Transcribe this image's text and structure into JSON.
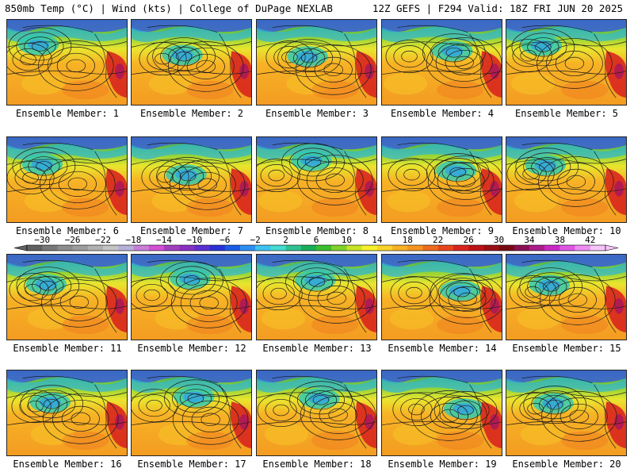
{
  "header": {
    "left": "850mb Temp (°C) | Wind (kts) | College of DuPage NEXLAB",
    "right": "12Z GEFS | F294 Valid: 18Z FRI JUN 20 2025"
  },
  "members": [
    {
      "label": "Ensemble Member: 1"
    },
    {
      "label": "Ensemble Member: 2"
    },
    {
      "label": "Ensemble Member: 3"
    },
    {
      "label": "Ensemble Member: 4"
    },
    {
      "label": "Ensemble Member: 5"
    },
    {
      "label": "Ensemble Member: 6"
    },
    {
      "label": "Ensemble Member: 7"
    },
    {
      "label": "Ensemble Member: 8"
    },
    {
      "label": "Ensemble Member: 9"
    },
    {
      "label": "Ensemble Member: 10"
    },
    {
      "label": "Ensemble Member: 11"
    },
    {
      "label": "Ensemble Member: 12"
    },
    {
      "label": "Ensemble Member: 13"
    },
    {
      "label": "Ensemble Member: 14"
    },
    {
      "label": "Ensemble Member: 15"
    },
    {
      "label": "Ensemble Member: 16"
    },
    {
      "label": "Ensemble Member: 17"
    },
    {
      "label": "Ensemble Member: 18"
    },
    {
      "label": "Ensemble Member: 19"
    },
    {
      "label": "Ensemble Member: 20"
    }
  ],
  "colorbar": {
    "tick_labels": [
      "-30",
      "-26",
      "-22",
      "-18",
      "-14",
      "-10",
      "-6",
      "-2",
      "2",
      "6",
      "10",
      "14",
      "18",
      "22",
      "26",
      "30",
      "34",
      "38",
      "42"
    ],
    "colors": [
      "#606060",
      "#787878",
      "#8c8c8c",
      "#9c9c9c",
      "#b0b0b0",
      "#c4c4c4",
      "#b7b1d9",
      "#c87fd8",
      "#d450d4",
      "#a23fbf",
      "#8a2fc2",
      "#5c2fd0",
      "#2a32d6",
      "#1a5ce4",
      "#2d8ff0",
      "#3ec2f0",
      "#45dbd0",
      "#2fc290",
      "#19ad59",
      "#3cbe2e",
      "#7fd22a",
      "#c8e427",
      "#f6f02c",
      "#f8d22a",
      "#f8b024",
      "#f49420",
      "#ee6c1e",
      "#e8461c",
      "#d8261e",
      "#bc1218",
      "#9a0e14",
      "#7a0a12",
      "#8a1054",
      "#ab1e8a",
      "#c92ac6",
      "#de56e4",
      "#ec8cf0",
      "#f6c4f8"
    ]
  }
}
